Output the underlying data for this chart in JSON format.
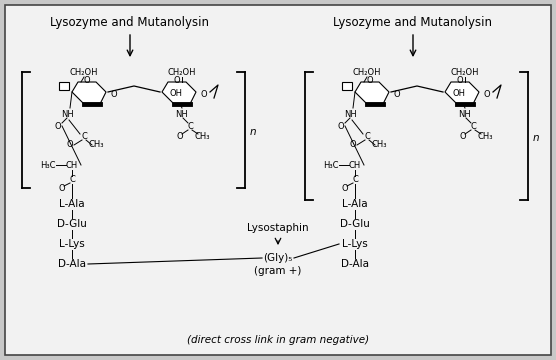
{
  "fig_width": 5.56,
  "fig_height": 3.6,
  "dpi": 100,
  "bg_color": "#c8c8c8",
  "inner_bg": "#f2f2f2",
  "left_title": "Lysozyme and Mutanolysin",
  "right_title": "Lysozyme and Mutanolysin",
  "left_peptide": [
    "L-Ala",
    "D-Glu",
    "L-Lys",
    "D-Ala"
  ],
  "right_peptide": [
    "L-Ala",
    "D-Glu",
    "L-Lys",
    "D-Ala"
  ],
  "lysostaphin_label": "Lysostaphin",
  "gly5_label": "(Gly)₅",
  "gram_plus_label": "(gram +)",
  "bottom_text": "(direct cross link in gram negative)",
  "title_fontsize": 8.5,
  "label_fontsize": 7.5,
  "small_fontsize": 6.0
}
